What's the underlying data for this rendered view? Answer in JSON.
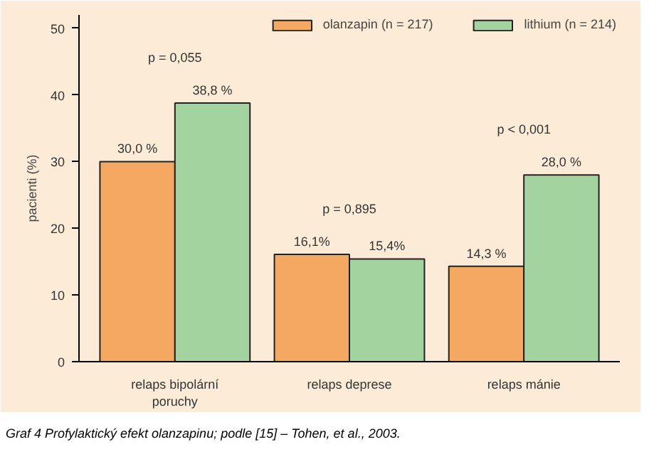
{
  "chart_data": {
    "type": "bar",
    "ylabel": "pacienti (%)",
    "categories": [
      "relaps bipolární\nporuchy",
      "relaps deprese",
      "relaps mánie"
    ],
    "series": [
      {
        "name": "olanzapin (n = 217)",
        "color": "#f5a862",
        "values": [
          30.0,
          16.1,
          14.3
        ],
        "value_labels": [
          "30,0 %",
          "16,1%",
          "14,3 %"
        ]
      },
      {
        "name": "lithium (n = 214)",
        "color": "#a3d4a0",
        "values": [
          38.8,
          15.4,
          28.0
        ],
        "value_labels": [
          "38,8 %",
          "15,4%",
          "28,0 %"
        ]
      }
    ],
    "ylim": [
      0,
      52
    ],
    "yticks": [
      0,
      10,
      20,
      30,
      40,
      50
    ],
    "grid": false,
    "legend": "top right",
    "annotations": [
      "p = 0,055",
      "p = 0,895",
      "p < 0,001",
      "Graf 4  Profylaktický efekt olanzapinu; podle [15] – Tohen, et al., 2003."
    ]
  }
}
